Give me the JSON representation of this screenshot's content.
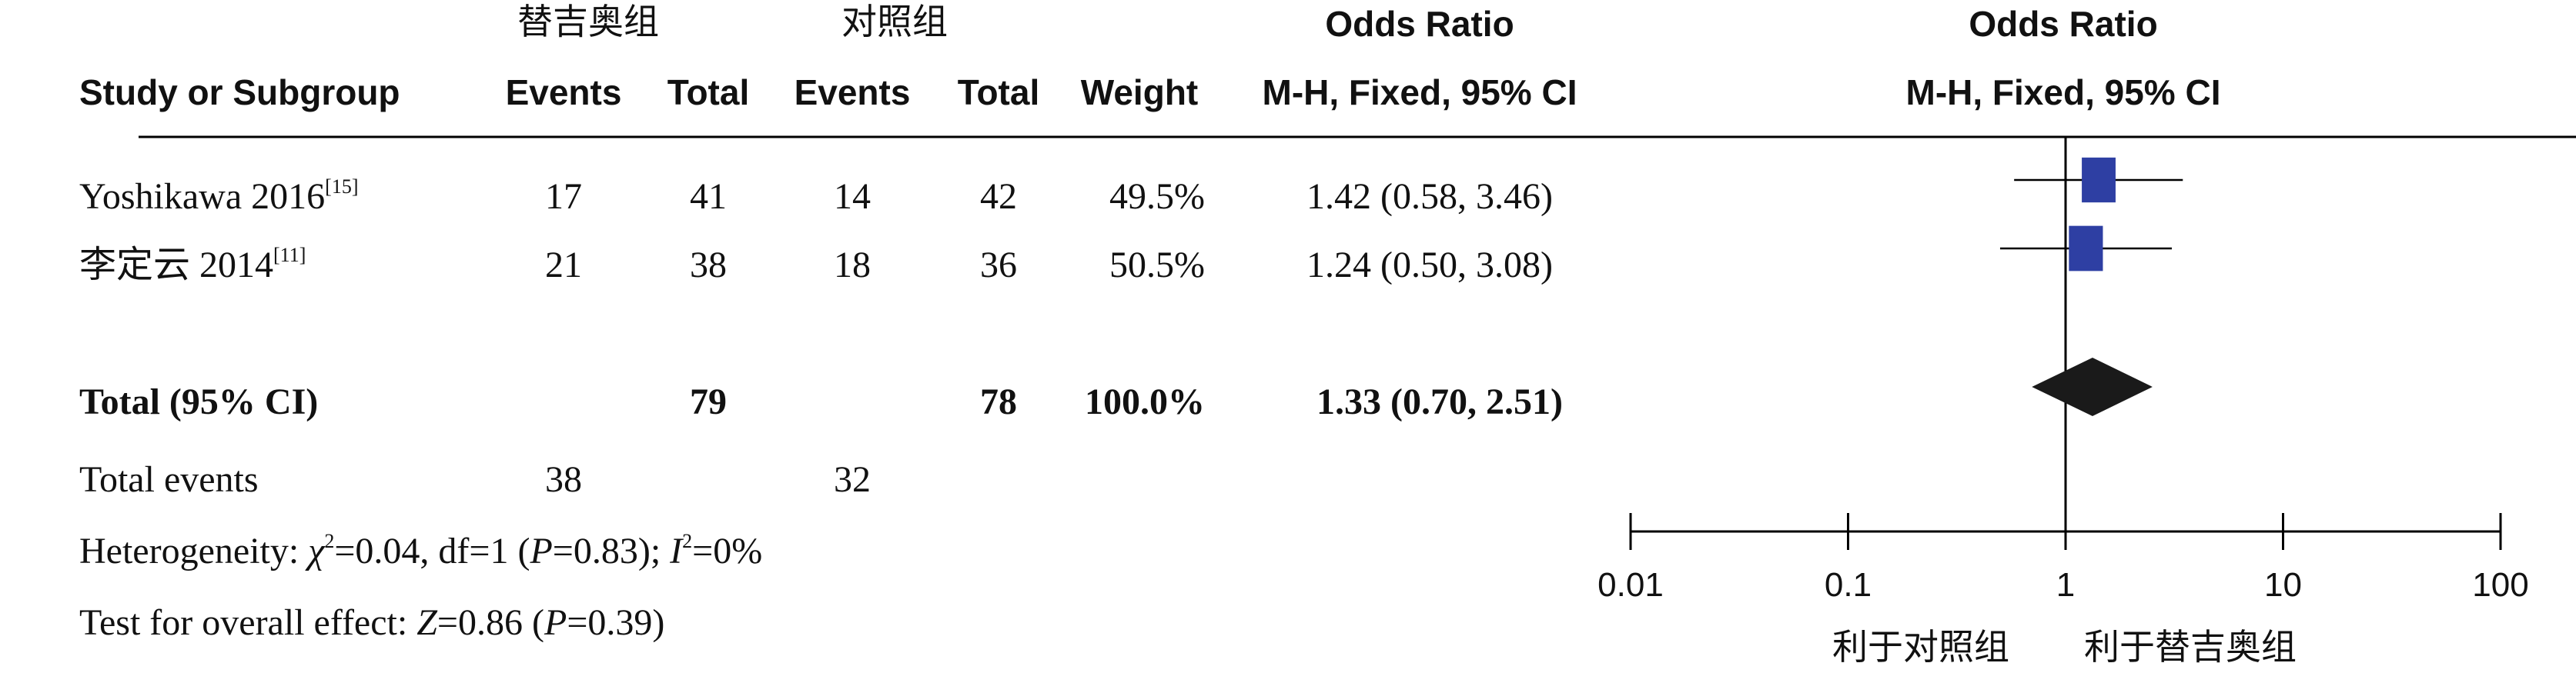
{
  "header": {
    "group_exp": "替吉奥组",
    "group_ctrl": "对照组",
    "or_title": "Odds Ratio",
    "or_title_plot": "Odds Ratio",
    "col_study": "Study or Subgroup",
    "col_events_exp": "Events",
    "col_total_exp": "Total",
    "col_events_ctrl": "Events",
    "col_total_ctrl": "Total",
    "col_weight": "Weight",
    "col_method": "M-H, Fixed, 95% CI",
    "col_method_plot": "M-H, Fixed, 95% CI"
  },
  "rows": [
    {
      "study": "Yoshikawa 2016",
      "ref": "[15]",
      "events_exp": "17",
      "total_exp": "41",
      "events_ctrl": "14",
      "total_ctrl": "42",
      "weight": "49.5%",
      "ci": "1.42 (0.58, 3.46)"
    },
    {
      "study": "李定云 2014",
      "ref": "[11]",
      "events_exp": "21",
      "total_exp": "38",
      "events_ctrl": "18",
      "total_ctrl": "36",
      "weight": "50.5%",
      "ci": "1.24 (0.50, 3.08)"
    }
  ],
  "total": {
    "label": "Total (95% CI)",
    "total_exp": "79",
    "total_ctrl": "78",
    "weight": "100.0%",
    "ci": "1.33 (0.70, 2.51)"
  },
  "total_events": {
    "label": "Total events",
    "exp": "38",
    "ctrl": "32"
  },
  "heterogeneity": {
    "prefix": "Heterogeneity: ",
    "chi_sym": "χ",
    "chi_rest": "=0.04, df=1 (",
    "p_sym": "P",
    "p_rest": "=0.83); ",
    "i_sym": "I",
    "i_rest": "=0%"
  },
  "overall": {
    "prefix": "Test for overall effect: ",
    "z_sym": "Z",
    "z_rest": "=0.86 (",
    "p_sym": "P",
    "p_rest": "=0.39)"
  },
  "chart_data": {
    "type": "forest",
    "scale": "log",
    "xlim": [
      0.01,
      100
    ],
    "ticks": [
      "0.01",
      "0.1",
      "1",
      "10",
      "100"
    ],
    "tick_values": [
      0.01,
      0.1,
      1,
      10,
      100
    ],
    "favours_left": "利于对照组",
    "favours_right": "利于替吉奥组",
    "studies": [
      {
        "or": 1.42,
        "lo": 0.58,
        "hi": 3.46,
        "weight": 49.5
      },
      {
        "or": 1.24,
        "lo": 0.5,
        "hi": 3.08,
        "weight": 50.5
      }
    ],
    "pooled": {
      "or": 1.33,
      "lo": 0.7,
      "hi": 2.51
    },
    "colors": {
      "square": "#2e3fa3",
      "diamond": "#1a1a1a",
      "line": "#000000"
    }
  }
}
